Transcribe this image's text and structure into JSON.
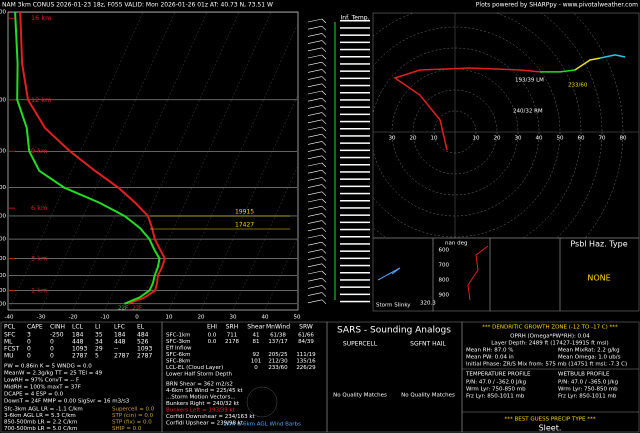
{
  "header": {
    "left": "NAM 3km CONUS 2026-01-23 18z, F055   VALID: Mon 2026-01-26 01z   AT: 40.73 N, 73.51 W",
    "right": "Plots powered by SHARPpy - www.pivotalweather.com"
  },
  "chart_data": [
    {
      "type": "skewt",
      "pressure": [
        1000,
        950,
        900,
        850,
        800,
        750,
        700,
        650,
        600,
        550,
        500,
        450,
        400,
        350,
        300,
        250,
        200,
        150,
        100
      ],
      "series": [
        {
          "color": "#e02020",
          "values": [
            -3.7,
            0.7,
            2.9,
            2.5,
            1.7,
            1.8,
            1.5,
            -1.4,
            -4.4,
            -6.8,
            -9.8,
            -15.7,
            -23,
            -32.7,
            -43.3,
            -54.3,
            -63.6,
            -70.6,
            -78.4
          ]
        },
        {
          "color": "#22dd22",
          "values": [
            -4.8,
            -0.9,
            1.2,
            1.2,
            0.7,
            0.5,
            -0.2,
            -3.2,
            -6.1,
            -10.6,
            -17.1,
            -26.9,
            -39.9,
            -50.1,
            -56,
            -60,
            -67,
            -72,
            -80
          ]
        }
      ],
      "xlim": [
        -40,
        50
      ],
      "xticks": [
        -40,
        -30,
        -20,
        -10,
        0,
        10,
        20,
        30,
        40,
        50
      ],
      "ylim": [
        1050,
        100
      ],
      "yticks": [
        100,
        200,
        300,
        400,
        500,
        600,
        700,
        800,
        900,
        1000
      ],
      "log_y": true,
      "skew": 0.45,
      "height_ticks": [
        {
          "value": 105,
          "label": "16 km"
        },
        {
          "value": 200,
          "label": "12 km"
        },
        {
          "value": 300,
          "label": "9 km"
        },
        {
          "value": 470,
          "label": "6 km"
        },
        {
          "value": 700,
          "label": "3 km"
        },
        {
          "value": 900,
          "label": "1 km"
        }
      ],
      "annotations": [
        "19915",
        "17427",
        "22F",
        "23F"
      ]
    },
    {
      "type": "hodograph",
      "rings": [
        10,
        20,
        30,
        40,
        50,
        60,
        70,
        80
      ],
      "series": [
        {
          "color": "#e02020",
          "u": [
            -3.8,
            -7.1,
            -16.7,
            -28.6,
            -16.7,
            7.1,
            31,
            40.5
          ],
          "v": [
            -8.6,
            5.7,
            17.6,
            25.7,
            29.5,
            30.5,
            29.5,
            28.6
          ]
        },
        {
          "color": "#22dd22",
          "u": [
            40.5,
            50,
            57.1
          ],
          "v": [
            28.6,
            28.6,
            29.5
          ]
        },
        {
          "color": "#e8e020",
          "u": [
            57.1,
            64.3,
            69
          ],
          "v": [
            29.5,
            34.3,
            35.2
          ]
        },
        {
          "color": "#20c8e8",
          "u": [
            69,
            76.2,
            81
          ],
          "v": [
            35.2,
            36.7,
            35.7
          ]
        }
      ],
      "annotations": [
        "193/39 LM",
        "240/32 RM",
        "233/60"
      ]
    }
  ],
  "middle": {
    "inf_temp": "Inf. Temp.",
    "slinky": "Storm Slinky",
    "slinky_value": "320.3",
    "thetae_title": "nan deg",
    "thetae_pressures": [
      "600",
      "700",
      "800",
      "900"
    ],
    "haz_title": "Psbl Haz. Type",
    "haz_value": "NONE"
  },
  "parcel": {
    "header": [
      "PCL",
      "CAPE",
      "CINH",
      "LCL",
      "LI",
      "LFC",
      "EL"
    ],
    "rows": [
      [
        "SFC",
        "3",
        "-250",
        "184",
        "35",
        "184",
        "484"
      ],
      [
        "ML",
        "0",
        "0",
        "448",
        "34",
        "448",
        "526"
      ],
      [
        "FCST",
        "0",
        "0",
        "1093",
        "29",
        "--",
        "1093"
      ],
      [
        "MU",
        "0",
        "0",
        "2787",
        "5",
        "2787",
        "2787"
      ]
    ],
    "indices": [
      "PW = 0.86in   K = 5   WNDG = 0.0",
      "MeanW = 2.3g/kg   TT = 25   TEI = 49",
      "LowRH = 97%   ConvT = -- F",
      "MidRH = 100%   maxT = 37F",
      "DCAPE = 4   ESP = 0.0",
      "DownT = 24F   MMP = 0.00   SigSvr = 16 m3/s3"
    ],
    "lapse": [
      "Sfc-3km AGL LR = -1.1 C/km",
      "3-6km AGL LR = 5.3 C/km",
      "850-500mb LR = 2.2 C/km",
      "700-500mb LR = 5.0 C/km"
    ],
    "composite": [
      "Supercell = 0.0",
      "STP (cin) = 0.0",
      "STP (fix) = 0.0",
      "SHIP = 0.0"
    ]
  },
  "kinematic": {
    "header": [
      "EHI",
      "SRH",
      "Shear",
      "MnWind",
      "SRW"
    ],
    "rows": [
      [
        "SFC-1km",
        "0.0",
        "711",
        "41",
        "61/38",
        "61/66"
      ],
      [
        "SFC-3km",
        "0.0",
        "2178",
        "81",
        "137/17",
        "84/39"
      ],
      [
        "Eff Inflow",
        "",
        "",
        "",
        "",
        ""
      ],
      [
        "SFC-6km",
        "",
        "",
        "92",
        "205/25",
        "111/19"
      ],
      [
        "SFC-8km",
        "",
        "",
        "101",
        "212/30",
        "135/16"
      ],
      [
        "LCL-EL (Cloud Layer)",
        "",
        "",
        "0",
        "233/60",
        "226/29"
      ],
      [
        "Lower Half Storm Depth",
        "",
        "",
        "",
        "",
        ""
      ]
    ],
    "lines": [
      "BRN Shear = 362 m2/s2",
      "4-6km SR Wind = 225/45 kt",
      "...Storm Motion Vectors...",
      "Bunkers Right = 240/32 kt",
      "Bunkers Left = 193/39 kt",
      "Corfidi Downshear = 234/163 kt",
      "Corfidi Upshear = 239/98 kt"
    ],
    "barbs": "1km & 6km AGL Wind Barbs"
  },
  "sars": {
    "title": "SARS - Sounding Analogs",
    "supercell": "SUPERCELL",
    "hail": "SGFNT HAIL",
    "supercell_result": "No Quality Matches",
    "hail_result": "No Quality Matches"
  },
  "dgz": {
    "title": "*** DENDRITIC GROWTH ZONE (-12 TO -17 C) ***",
    "lines": [
      "OPRH (Omega*PW*RH): 0.04",
      "Layer Depth: 2489 ft (17427-19915 ft msl)"
    ],
    "left": [
      "Mean RH: 87.0 %",
      "Mean PW: 0.04 in"
    ],
    "right": [
      "Mean MixRat: 2.2 g/kg",
      "Mean Omega: 1.0 ub/s"
    ],
    "phase": "Initial Phase: ZR/S Mix from: 575 mb (14751 ft msl; -7.3 C)",
    "temp_profile": {
      "title": "TEMPERATURE PROFILE",
      "lines": [
        "P/N: 47.0 / -362.0 J/kg",
        "Wrm Lyr: 750-850 mb",
        "Frz Lyr: 850-1011 mb"
      ]
    },
    "wetbulb_profile": {
      "title": "WETBULB PROFILE",
      "lines": [
        "P/N: 47.0 / -365.0 J/kg",
        "Wrm Lyr: 750-850 mb",
        "Frz Lyr: 850-1011 mb"
      ]
    },
    "precip_title": "*** BEST GUESS PRECIP TYPE ***",
    "precip": "Sleet."
  }
}
